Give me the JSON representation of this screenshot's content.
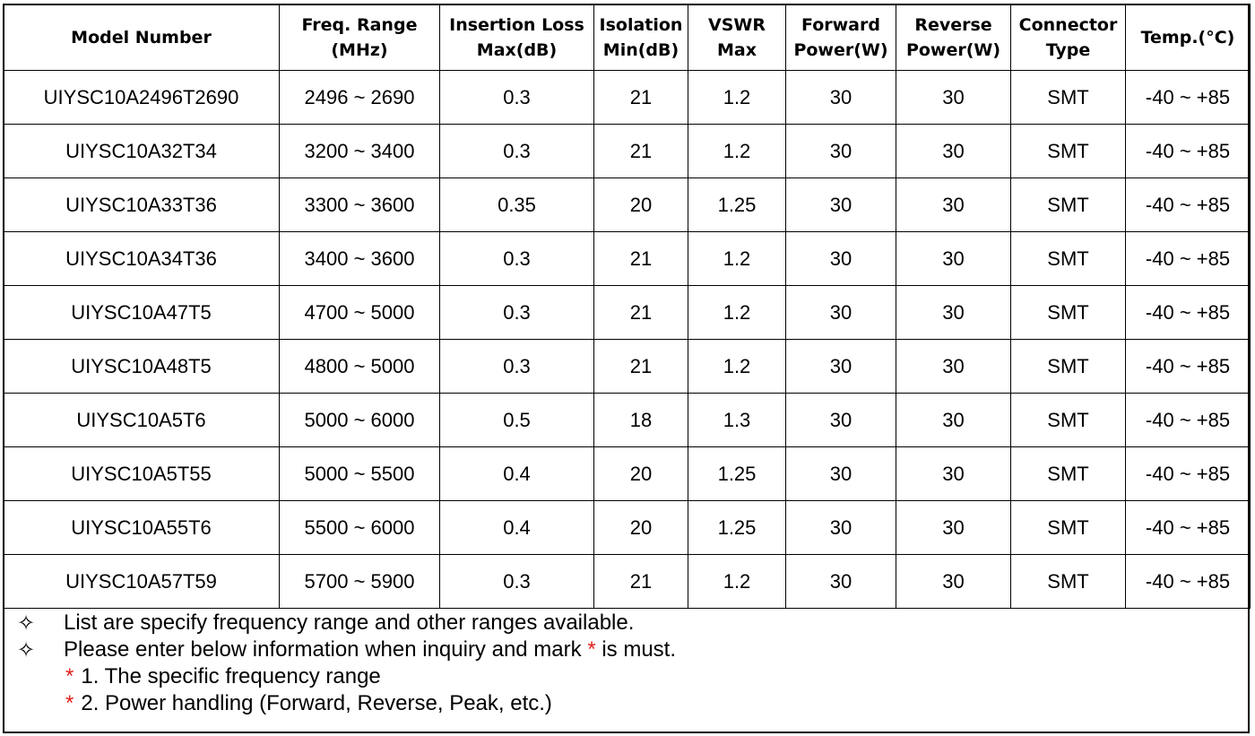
{
  "table": {
    "headers": [
      [
        "Model Number"
      ],
      [
        "Freq. Range",
        "(MHz)"
      ],
      [
        "Insertion Loss",
        "Max(dB)"
      ],
      [
        "Isolation",
        "Min(dB)"
      ],
      [
        "VSWR",
        "Max"
      ],
      [
        "Forward",
        "Power(W)"
      ],
      [
        "Reverse",
        "Power(W)"
      ],
      [
        "Connector",
        "Type"
      ],
      [
        "Temp.(°C)"
      ]
    ],
    "rows": [
      [
        "UIYSC10A2496T2690",
        "2496 ~ 2690",
        "0.3",
        "21",
        "1.2",
        "30",
        "30",
        "SMT",
        "-40 ~ +85"
      ],
      [
        "UIYSC10A32T34",
        "3200 ~ 3400",
        "0.3",
        "21",
        "1.2",
        "30",
        "30",
        "SMT",
        "-40 ~ +85"
      ],
      [
        "UIYSC10A33T36",
        "3300 ~ 3600",
        "0.35",
        "20",
        "1.25",
        "30",
        "30",
        "SMT",
        "-40 ~ +85"
      ],
      [
        "UIYSC10A34T36",
        "3400 ~ 3600",
        "0.3",
        "21",
        "1.2",
        "30",
        "30",
        "SMT",
        "-40 ~ +85"
      ],
      [
        "UIYSC10A47T5",
        "4700 ~ 5000",
        "0.3",
        "21",
        "1.2",
        "30",
        "30",
        "SMT",
        "-40 ~ +85"
      ],
      [
        "UIYSC10A48T5",
        "4800 ~ 5000",
        "0.3",
        "21",
        "1.2",
        "30",
        "30",
        "SMT",
        "-40 ~ +85"
      ],
      [
        "UIYSC10A5T6",
        "5000 ~ 6000",
        "0.5",
        "18",
        "1.3",
        "30",
        "30",
        "SMT",
        "-40 ~ +85"
      ],
      [
        "UIYSC10A5T55",
        "5000 ~ 5500",
        "0.4",
        "20",
        "1.25",
        "30",
        "30",
        "SMT",
        "-40 ~ +85"
      ],
      [
        "UIYSC10A55T6",
        "5500 ~ 6000",
        "0.4",
        "20",
        "1.25",
        "30",
        "30",
        "SMT",
        "-40 ~ +85"
      ],
      [
        "UIYSC10A57T59",
        "5700 ~ 5900",
        "0.3",
        "21",
        "1.2",
        "30",
        "30",
        "SMT",
        "-40 ~ +85"
      ]
    ]
  },
  "notes": {
    "bullet_glyph": "✧",
    "line1": "List are specify frequency range and other ranges available.",
    "line2_before": "Please enter below information when inquiry and mark ",
    "line2_star": "*",
    "line2_after": " is must.",
    "items": [
      {
        "star": "*",
        "text": "1. The specific frequency range"
      },
      {
        "star": "*",
        "text": "2. Power handling (Forward, Reverse, Peak, etc.)"
      }
    ]
  },
  "colors": {
    "required_star": "#e0201c",
    "border": "#000000"
  }
}
